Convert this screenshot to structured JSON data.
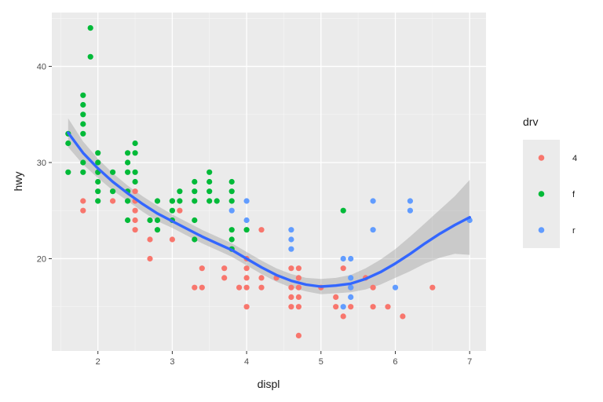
{
  "chart_data": {
    "type": "scatter",
    "xlabel": "displ",
    "ylabel": "hwy",
    "xlim": [
      1.38,
      7.22
    ],
    "ylim": [
      10.4,
      45.6
    ],
    "x_ticks": [
      2,
      3,
      4,
      5,
      6,
      7
    ],
    "y_ticks": [
      20,
      30,
      40
    ],
    "grid": true,
    "legend": {
      "title": "drv",
      "position": "right",
      "entries": [
        {
          "label": "4",
          "color": "#F8766D"
        },
        {
          "label": "f",
          "color": "#00BA38"
        },
        {
          "label": "r",
          "color": "#619CFF"
        }
      ]
    },
    "series": [
      {
        "name": "4",
        "color": "#F8766D",
        "points": [
          [
            1.8,
            26
          ],
          [
            1.8,
            25
          ],
          [
            2.2,
            26
          ],
          [
            2.5,
            27
          ],
          [
            2.5,
            26
          ],
          [
            2.5,
            25
          ],
          [
            2.5,
            24
          ],
          [
            2.5,
            23
          ],
          [
            2.7,
            22
          ],
          [
            2.7,
            20
          ],
          [
            3.0,
            22
          ],
          [
            3.1,
            25
          ],
          [
            3.3,
            17
          ],
          [
            3.4,
            17
          ],
          [
            3.4,
            19
          ],
          [
            3.7,
            19
          ],
          [
            3.7,
            18
          ],
          [
            3.9,
            17
          ],
          [
            4.0,
            20
          ],
          [
            4.0,
            19
          ],
          [
            4.0,
            18
          ],
          [
            4.0,
            17
          ],
          [
            4.0,
            15
          ],
          [
            4.2,
            18
          ],
          [
            4.2,
            17
          ],
          [
            4.2,
            23
          ],
          [
            4.4,
            18
          ],
          [
            4.6,
            19
          ],
          [
            4.6,
            17
          ],
          [
            4.6,
            16
          ],
          [
            4.6,
            15
          ],
          [
            4.7,
            19
          ],
          [
            4.7,
            18
          ],
          [
            4.7,
            17
          ],
          [
            4.7,
            16
          ],
          [
            4.7,
            15
          ],
          [
            4.7,
            12
          ],
          [
            5.0,
            17
          ],
          [
            5.2,
            16
          ],
          [
            5.2,
            15
          ],
          [
            5.3,
            14
          ],
          [
            5.3,
            19
          ],
          [
            5.4,
            15
          ],
          [
            5.4,
            17
          ],
          [
            5.7,
            17
          ],
          [
            5.7,
            15
          ],
          [
            5.9,
            15
          ],
          [
            6.1,
            14
          ],
          [
            6.5,
            17
          ],
          [
            5.6,
            18
          ]
        ]
      },
      {
        "name": "f",
        "color": "#00BA38",
        "points": [
          [
            1.6,
            33
          ],
          [
            1.6,
            32
          ],
          [
            1.6,
            29
          ],
          [
            1.8,
            37
          ],
          [
            1.8,
            36
          ],
          [
            1.8,
            35
          ],
          [
            1.8,
            34
          ],
          [
            1.8,
            33
          ],
          [
            1.8,
            29
          ],
          [
            1.8,
            30
          ],
          [
            1.9,
            44
          ],
          [
            1.9,
            41
          ],
          [
            2.0,
            31
          ],
          [
            2.0,
            30
          ],
          [
            2.0,
            29
          ],
          [
            2.0,
            28
          ],
          [
            2.0,
            27
          ],
          [
            2.0,
            26
          ],
          [
            2.2,
            29
          ],
          [
            2.2,
            27
          ],
          [
            2.4,
            31
          ],
          [
            2.4,
            30
          ],
          [
            2.4,
            29
          ],
          [
            2.4,
            27
          ],
          [
            2.4,
            26
          ],
          [
            2.4,
            24
          ],
          [
            2.5,
            32
          ],
          [
            2.5,
            31
          ],
          [
            2.5,
            29
          ],
          [
            2.5,
            28
          ],
          [
            2.7,
            24
          ],
          [
            2.8,
            26
          ],
          [
            2.8,
            24
          ],
          [
            2.8,
            23
          ],
          [
            3.0,
            26
          ],
          [
            3.0,
            25
          ],
          [
            3.0,
            24
          ],
          [
            3.0,
            26
          ],
          [
            3.1,
            27
          ],
          [
            3.1,
            26
          ],
          [
            3.3,
            28
          ],
          [
            3.3,
            27
          ],
          [
            3.3,
            26
          ],
          [
            3.3,
            24
          ],
          [
            3.3,
            22
          ],
          [
            3.5,
            29
          ],
          [
            3.5,
            28
          ],
          [
            3.5,
            27
          ],
          [
            3.5,
            26
          ],
          [
            3.6,
            26
          ],
          [
            3.8,
            28
          ],
          [
            3.8,
            27
          ],
          [
            3.8,
            26
          ],
          [
            3.8,
            23
          ],
          [
            3.8,
            22
          ],
          [
            3.8,
            21
          ],
          [
            4.0,
            23
          ],
          [
            5.3,
            25
          ]
        ]
      },
      {
        "name": "r",
        "color": "#619CFF",
        "points": [
          [
            3.8,
            25
          ],
          [
            4.0,
            26
          ],
          [
            4.0,
            24
          ],
          [
            4.6,
            23
          ],
          [
            4.6,
            22
          ],
          [
            4.6,
            21
          ],
          [
            5.3,
            20
          ],
          [
            5.3,
            15
          ],
          [
            5.4,
            20
          ],
          [
            5.4,
            18
          ],
          [
            5.4,
            17
          ],
          [
            5.4,
            16
          ],
          [
            5.7,
            26
          ],
          [
            5.7,
            23
          ],
          [
            6.0,
            17
          ],
          [
            6.2,
            26
          ],
          [
            6.2,
            25
          ],
          [
            7.0,
            24
          ]
        ]
      }
    ],
    "smooth": {
      "color": "#3366FF",
      "band_color": "#999999",
      "line": [
        [
          1.6,
          33.1
        ],
        [
          1.8,
          31.0
        ],
        [
          2.0,
          29.4
        ],
        [
          2.2,
          28.0
        ],
        [
          2.4,
          26.8
        ],
        [
          2.6,
          25.7
        ],
        [
          2.8,
          24.7
        ],
        [
          3.0,
          23.9
        ],
        [
          3.2,
          23.1
        ],
        [
          3.4,
          22.3
        ],
        [
          3.6,
          21.6
        ],
        [
          3.8,
          20.9
        ],
        [
          4.0,
          20.0
        ],
        [
          4.2,
          19.1
        ],
        [
          4.4,
          18.3
        ],
        [
          4.6,
          17.7
        ],
        [
          4.8,
          17.3
        ],
        [
          5.0,
          17.1
        ],
        [
          5.2,
          17.2
        ],
        [
          5.4,
          17.4
        ],
        [
          5.6,
          17.9
        ],
        [
          5.8,
          18.6
        ],
        [
          6.0,
          19.5
        ],
        [
          6.2,
          20.5
        ],
        [
          6.4,
          21.6
        ],
        [
          6.6,
          22.6
        ],
        [
          6.8,
          23.5
        ],
        [
          7.0,
          24.3
        ]
      ],
      "band_upper": [
        [
          1.6,
          34.6
        ],
        [
          1.8,
          32.2
        ],
        [
          2.0,
          30.4
        ],
        [
          2.2,
          28.9
        ],
        [
          2.4,
          27.6
        ],
        [
          2.6,
          26.5
        ],
        [
          2.8,
          25.5
        ],
        [
          3.0,
          24.6
        ],
        [
          3.2,
          23.8
        ],
        [
          3.4,
          23.0
        ],
        [
          3.6,
          22.3
        ],
        [
          3.8,
          21.6
        ],
        [
          4.0,
          20.7
        ],
        [
          4.2,
          19.8
        ],
        [
          4.4,
          19.0
        ],
        [
          4.6,
          18.4
        ],
        [
          4.8,
          18.0
        ],
        [
          5.0,
          17.9
        ],
        [
          5.2,
          18.0
        ],
        [
          5.4,
          18.3
        ],
        [
          5.6,
          19.0
        ],
        [
          5.8,
          19.9
        ],
        [
          6.0,
          21.0
        ],
        [
          6.2,
          22.3
        ],
        [
          6.4,
          23.7
        ],
        [
          6.6,
          25.1
        ],
        [
          6.8,
          26.5
        ],
        [
          7.0,
          28.2
        ]
      ],
      "band_lower": [
        [
          1.6,
          31.6
        ],
        [
          1.8,
          29.8
        ],
        [
          2.0,
          28.4
        ],
        [
          2.2,
          27.1
        ],
        [
          2.4,
          26.0
        ],
        [
          2.6,
          24.9
        ],
        [
          2.8,
          23.9
        ],
        [
          3.0,
          23.2
        ],
        [
          3.2,
          22.4
        ],
        [
          3.4,
          21.6
        ],
        [
          3.6,
          20.9
        ],
        [
          3.8,
          20.2
        ],
        [
          4.0,
          19.3
        ],
        [
          4.2,
          18.4
        ],
        [
          4.4,
          17.6
        ],
        [
          4.6,
          17.0
        ],
        [
          4.8,
          16.6
        ],
        [
          5.0,
          16.3
        ],
        [
          5.2,
          16.4
        ],
        [
          5.4,
          16.5
        ],
        [
          5.6,
          16.8
        ],
        [
          5.8,
          17.3
        ],
        [
          6.0,
          18.0
        ],
        [
          6.2,
          18.7
        ],
        [
          6.4,
          19.5
        ],
        [
          6.6,
          20.1
        ],
        [
          6.8,
          20.5
        ],
        [
          7.0,
          20.4
        ]
      ]
    }
  }
}
